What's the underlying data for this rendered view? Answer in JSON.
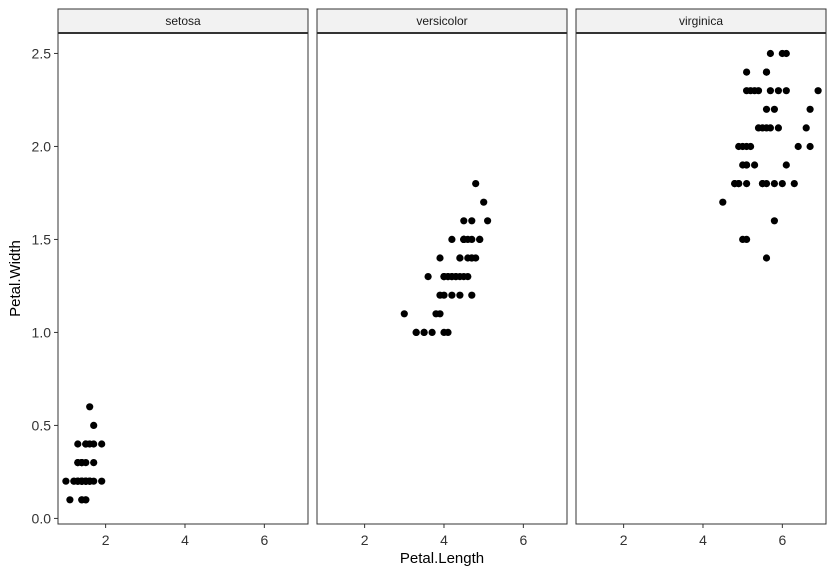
{
  "chart_data": {
    "type": "scatter",
    "facets": [
      {
        "name": "setosa",
        "points": [
          [
            1.4,
            0.2
          ],
          [
            1.4,
            0.2
          ],
          [
            1.3,
            0.2
          ],
          [
            1.5,
            0.2
          ],
          [
            1.4,
            0.2
          ],
          [
            1.7,
            0.4
          ],
          [
            1.4,
            0.3
          ],
          [
            1.5,
            0.2
          ],
          [
            1.4,
            0.2
          ],
          [
            1.5,
            0.1
          ],
          [
            1.5,
            0.2
          ],
          [
            1.6,
            0.2
          ],
          [
            1.4,
            0.1
          ],
          [
            1.1,
            0.1
          ],
          [
            1.2,
            0.2
          ],
          [
            1.5,
            0.4
          ],
          [
            1.3,
            0.4
          ],
          [
            1.4,
            0.3
          ],
          [
            1.7,
            0.3
          ],
          [
            1.5,
            0.3
          ],
          [
            1.7,
            0.2
          ],
          [
            1.5,
            0.4
          ],
          [
            1.0,
            0.2
          ],
          [
            1.7,
            0.5
          ],
          [
            1.9,
            0.2
          ],
          [
            1.6,
            0.2
          ],
          [
            1.6,
            0.4
          ],
          [
            1.5,
            0.2
          ],
          [
            1.4,
            0.2
          ],
          [
            1.6,
            0.2
          ],
          [
            1.6,
            0.2
          ],
          [
            1.5,
            0.4
          ],
          [
            1.5,
            0.1
          ],
          [
            1.4,
            0.2
          ],
          [
            1.5,
            0.2
          ],
          [
            1.2,
            0.2
          ],
          [
            1.3,
            0.2
          ],
          [
            1.4,
            0.1
          ],
          [
            1.3,
            0.2
          ],
          [
            1.5,
            0.2
          ],
          [
            1.3,
            0.3
          ],
          [
            1.3,
            0.3
          ],
          [
            1.3,
            0.2
          ],
          [
            1.6,
            0.6
          ],
          [
            1.9,
            0.4
          ],
          [
            1.4,
            0.3
          ],
          [
            1.6,
            0.2
          ],
          [
            1.4,
            0.2
          ],
          [
            1.5,
            0.2
          ],
          [
            1.4,
            0.2
          ]
        ]
      },
      {
        "name": "versicolor",
        "points": [
          [
            4.7,
            1.4
          ],
          [
            4.5,
            1.5
          ],
          [
            4.9,
            1.5
          ],
          [
            4.0,
            1.3
          ],
          [
            4.6,
            1.5
          ],
          [
            4.5,
            1.3
          ],
          [
            4.7,
            1.6
          ],
          [
            3.3,
            1.0
          ],
          [
            4.6,
            1.3
          ],
          [
            3.9,
            1.4
          ],
          [
            3.5,
            1.0
          ],
          [
            4.2,
            1.5
          ],
          [
            4.0,
            1.0
          ],
          [
            4.7,
            1.4
          ],
          [
            3.6,
            1.3
          ],
          [
            4.4,
            1.4
          ],
          [
            4.5,
            1.5
          ],
          [
            4.1,
            1.0
          ],
          [
            4.5,
            1.5
          ],
          [
            3.9,
            1.1
          ],
          [
            4.8,
            1.8
          ],
          [
            4.0,
            1.3
          ],
          [
            4.9,
            1.5
          ],
          [
            4.7,
            1.2
          ],
          [
            4.3,
            1.3
          ],
          [
            4.4,
            1.4
          ],
          [
            4.8,
            1.4
          ],
          [
            5.0,
            1.7
          ],
          [
            4.5,
            1.5
          ],
          [
            3.5,
            1.0
          ],
          [
            3.8,
            1.1
          ],
          [
            3.7,
            1.0
          ],
          [
            3.9,
            1.2
          ],
          [
            5.1,
            1.6
          ],
          [
            4.5,
            1.5
          ],
          [
            4.5,
            1.6
          ],
          [
            4.7,
            1.5
          ],
          [
            4.4,
            1.3
          ],
          [
            4.1,
            1.3
          ],
          [
            4.0,
            1.3
          ],
          [
            4.4,
            1.2
          ],
          [
            4.6,
            1.4
          ],
          [
            4.0,
            1.2
          ],
          [
            3.3,
            1.0
          ],
          [
            4.2,
            1.3
          ],
          [
            4.2,
            1.2
          ],
          [
            4.2,
            1.3
          ],
          [
            4.3,
            1.3
          ],
          [
            3.0,
            1.1
          ],
          [
            4.1,
            1.3
          ]
        ]
      },
      {
        "name": "virginica",
        "points": [
          [
            6.0,
            2.5
          ],
          [
            5.1,
            1.9
          ],
          [
            5.9,
            2.1
          ],
          [
            5.6,
            1.8
          ],
          [
            5.8,
            2.2
          ],
          [
            6.6,
            2.1
          ],
          [
            4.5,
            1.7
          ],
          [
            6.3,
            1.8
          ],
          [
            5.8,
            1.8
          ],
          [
            6.1,
            2.5
          ],
          [
            5.1,
            2.0
          ],
          [
            5.3,
            1.9
          ],
          [
            5.5,
            2.1
          ],
          [
            5.0,
            2.0
          ],
          [
            5.1,
            2.4
          ],
          [
            5.3,
            2.3
          ],
          [
            5.5,
            1.8
          ],
          [
            6.7,
            2.2
          ],
          [
            6.9,
            2.3
          ],
          [
            5.0,
            1.5
          ],
          [
            5.7,
            2.3
          ],
          [
            4.9,
            2.0
          ],
          [
            6.7,
            2.0
          ],
          [
            4.9,
            1.8
          ],
          [
            5.7,
            2.1
          ],
          [
            6.0,
            1.8
          ],
          [
            4.8,
            1.8
          ],
          [
            4.9,
            1.8
          ],
          [
            5.6,
            2.1
          ],
          [
            5.8,
            1.6
          ],
          [
            6.1,
            1.9
          ],
          [
            6.4,
            2.0
          ],
          [
            5.6,
            2.2
          ],
          [
            5.1,
            1.5
          ],
          [
            5.6,
            1.4
          ],
          [
            6.1,
            2.3
          ],
          [
            5.6,
            2.4
          ],
          [
            5.5,
            1.8
          ],
          [
            4.8,
            1.8
          ],
          [
            5.4,
            2.1
          ],
          [
            5.6,
            2.4
          ],
          [
            5.1,
            2.3
          ],
          [
            5.1,
            1.9
          ],
          [
            5.9,
            2.3
          ],
          [
            5.7,
            2.5
          ],
          [
            5.2,
            2.3
          ],
          [
            5.0,
            1.9
          ],
          [
            5.2,
            2.0
          ],
          [
            5.4,
            2.3
          ],
          [
            5.1,
            1.8
          ]
        ]
      }
    ],
    "xlabel": "Petal.Length",
    "ylabel": "Petal.Width",
    "xlim": [
      0.8,
      7.1
    ],
    "ylim": [
      -0.03,
      2.61
    ],
    "xticks": [
      2,
      4,
      6
    ],
    "yticks": [
      0.0,
      0.5,
      1.0,
      1.5,
      2.0,
      2.5
    ],
    "ytick_labels": [
      "0.0",
      "0.5",
      "1.0",
      "1.5",
      "2.0",
      "2.5"
    ],
    "grid": false,
    "point_color": "#000000",
    "strip_fill": "#f2f2f2",
    "panel_border": "#333333"
  }
}
